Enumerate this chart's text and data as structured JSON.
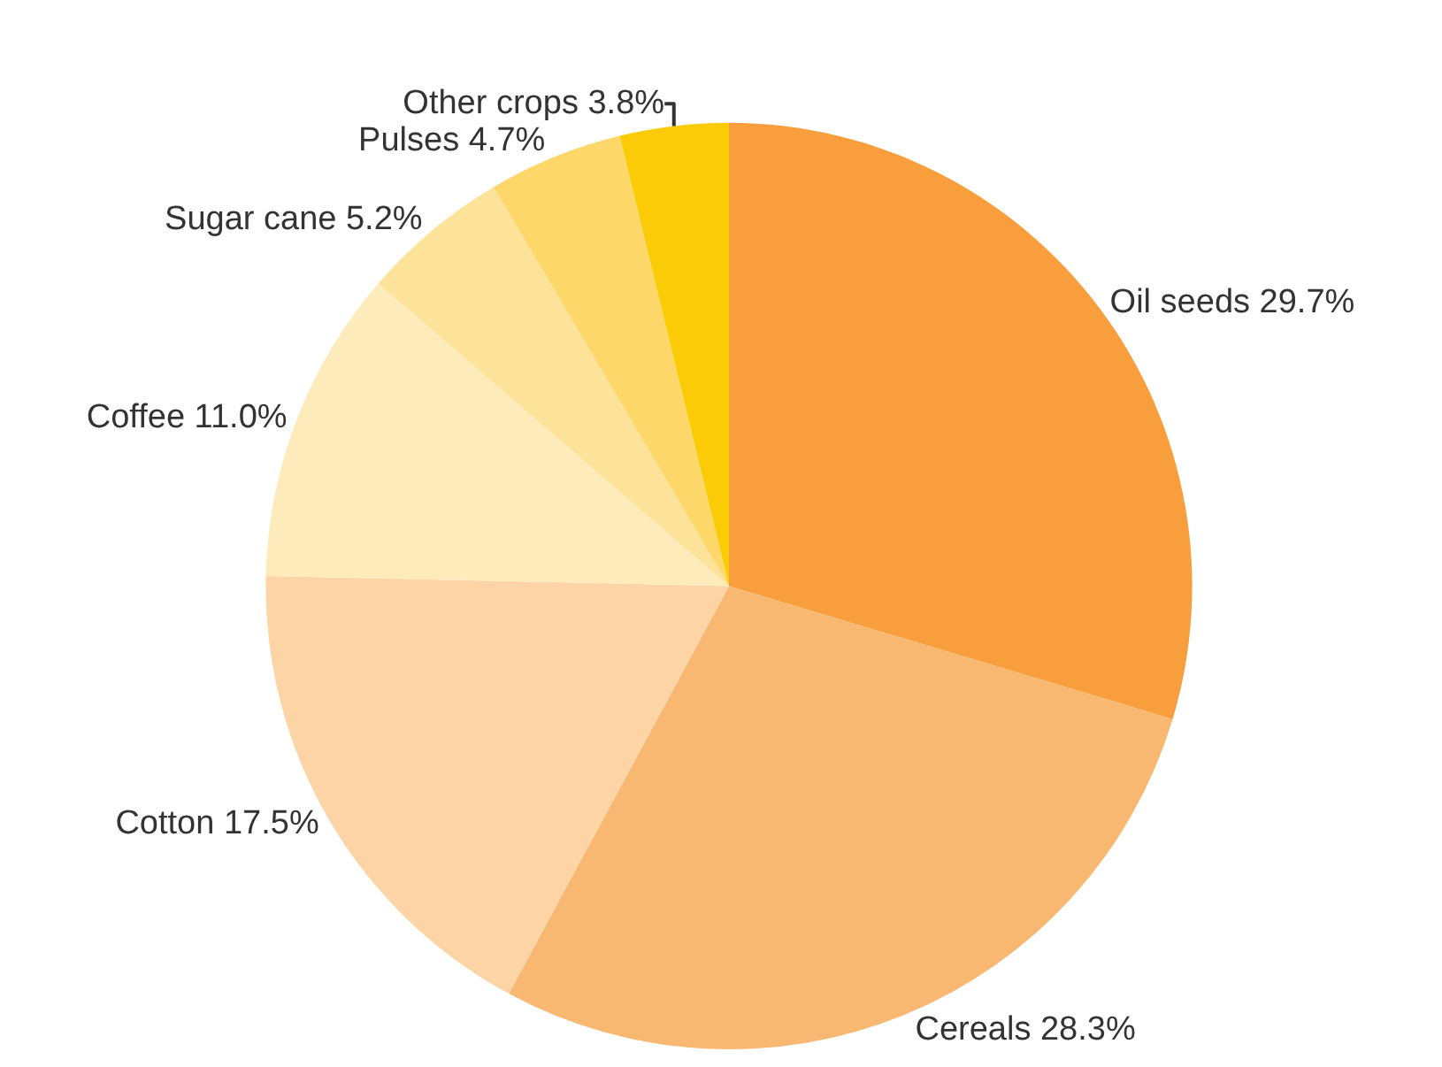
{
  "chart_data": {
    "type": "pie",
    "categories": [
      "Oil seeds",
      "Cereals",
      "Cotton",
      "Coffee",
      "Sugar cane",
      "Pulses",
      "Other crops"
    ],
    "values": [
      29.7,
      28.3,
      17.5,
      11.0,
      5.2,
      4.7,
      3.8
    ],
    "value_labels": [
      "29.7%",
      "28.3%",
      "17.5%",
      "11.0%",
      "5.2%",
      "4.7%",
      "3.8%"
    ],
    "colors": [
      "#f89e3c",
      "#f9b872",
      "#fcd4a6",
      "#fdebbc",
      "#fde39a",
      "#fdd76a",
      "#fccb08"
    ],
    "legend": false
  }
}
